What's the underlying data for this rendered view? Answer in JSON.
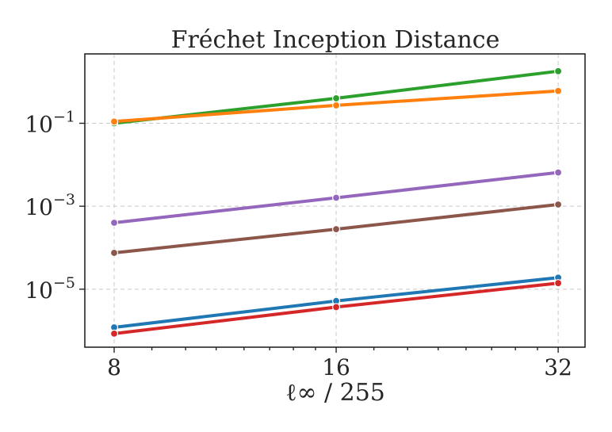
{
  "chart_data": {
    "type": "line",
    "title": "Fréchet Inception Distance",
    "xlabel": "ℓ∞ / 255",
    "ylabel": "",
    "x": [
      8,
      16,
      32
    ],
    "x_scale": "log2",
    "x_tick_labels": [
      "8",
      "16",
      "32"
    ],
    "xlim": [
      7.3,
      34.8
    ],
    "y_scale": "log",
    "ylim": [
      4e-07,
      4.7
    ],
    "y_ticks": [
      {
        "value": 0.1,
        "base": "10",
        "exp": "−1"
      },
      {
        "value": 0.001,
        "base": "10",
        "exp": "−3"
      },
      {
        "value": 1e-05,
        "base": "10",
        "exp": "−5"
      }
    ],
    "grid": true,
    "series": [
      {
        "color": "#2ca02c",
        "values": [
          0.1,
          0.4,
          1.8
        ]
      },
      {
        "color": "#ff7f0e",
        "values": [
          0.11,
          0.27,
          0.6
        ]
      },
      {
        "color": "#9467bd",
        "values": [
          0.0004,
          0.0016,
          0.0065
        ]
      },
      {
        "color": "#8c564b",
        "values": [
          7.5e-05,
          0.00028,
          0.0011
        ]
      },
      {
        "color": "#1f77b4",
        "values": [
          1.2e-06,
          5.2e-06,
          1.9e-05
        ]
      },
      {
        "color": "#d62728",
        "values": [
          8.5e-07,
          3.7e-06,
          1.4e-05
        ]
      }
    ]
  }
}
